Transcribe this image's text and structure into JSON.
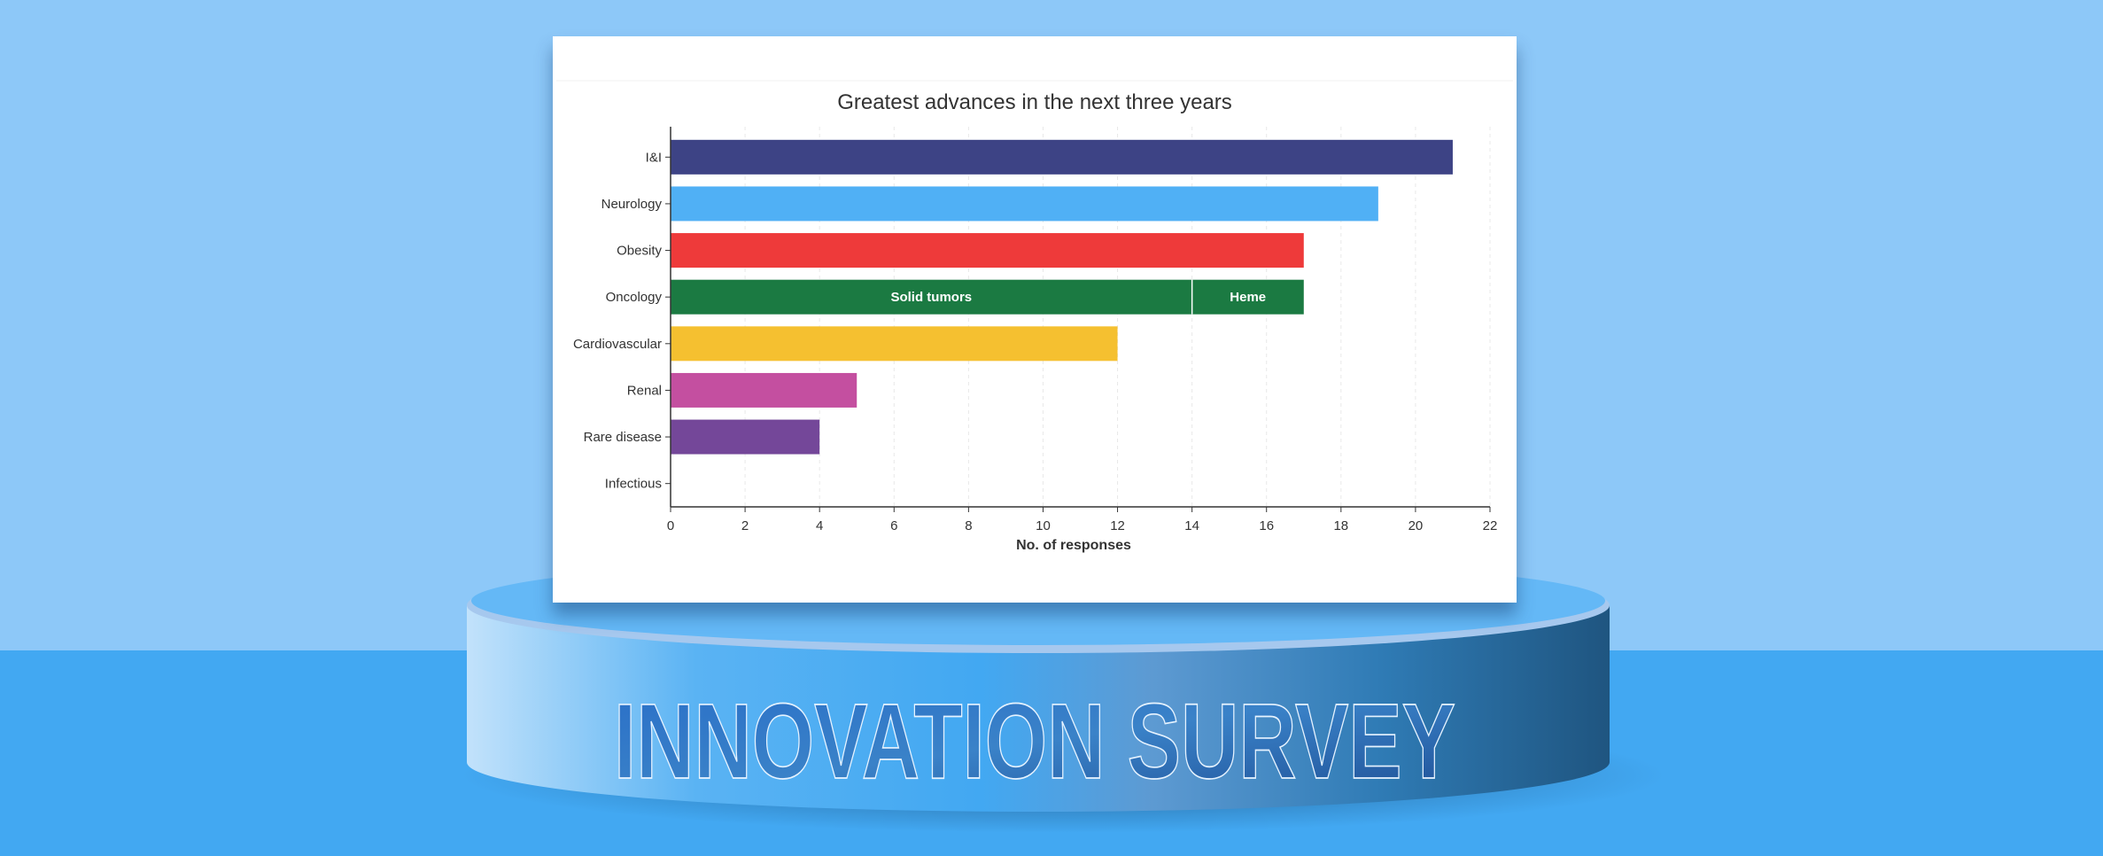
{
  "banner": {
    "title": "INNOVATION SURVEY"
  },
  "chart_data": {
    "type": "bar",
    "orientation": "horizontal",
    "stacked": true,
    "title": "Greatest advances in the next three years",
    "xlabel": "No. of responses",
    "ylabel": "",
    "xlim": [
      0,
      22
    ],
    "xticks": [
      0,
      2,
      4,
      6,
      8,
      10,
      12,
      14,
      16,
      18,
      20,
      22
    ],
    "grid": true,
    "categories": [
      "I&I",
      "Neurology",
      "Obesity",
      "Oncology",
      "Cardiovascular",
      "Renal",
      "Rare disease",
      "Infectious"
    ],
    "values": [
      21,
      19,
      17,
      17,
      12,
      5,
      4,
      0
    ],
    "colors": [
      "#3d4385",
      "#50b0f5",
      "#ee3a3a",
      "#1b7a42",
      "#f5c030",
      "#c44fa0",
      "#744799",
      "#888888"
    ],
    "segments": {
      "Oncology": [
        {
          "name": "Solid tumors",
          "value": 14
        },
        {
          "name": "Heme",
          "value": 3
        }
      ]
    }
  }
}
